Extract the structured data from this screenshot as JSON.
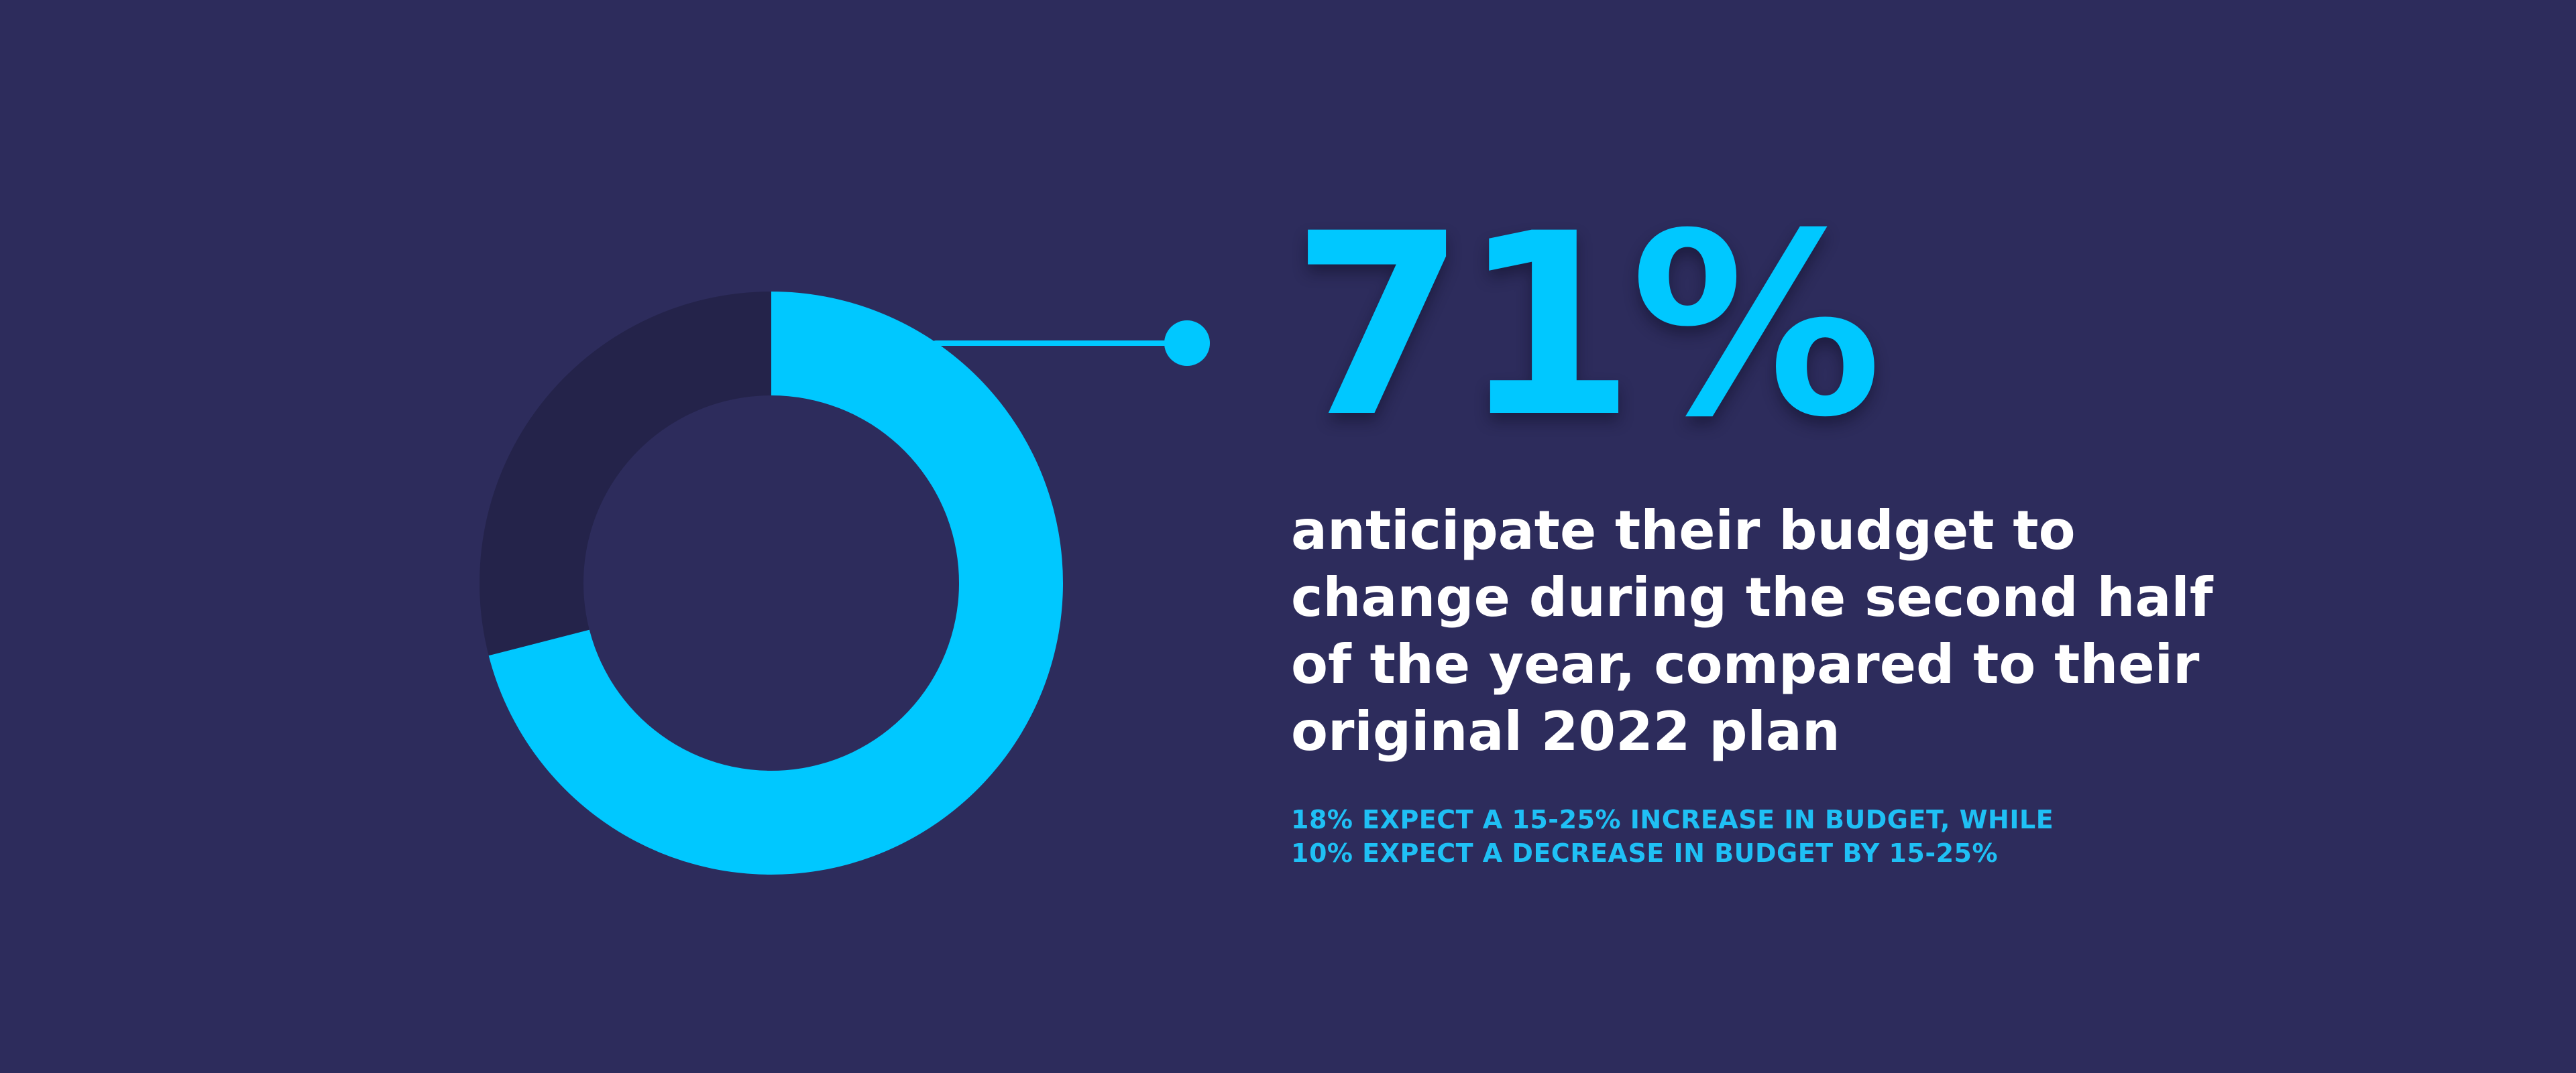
{
  "chart_data": {
    "type": "pie",
    "style": "donut",
    "slices": [
      {
        "label": "",
        "value": 71,
        "color": "#00c8ff"
      },
      {
        "label": "",
        "value": 29,
        "color": "#24234a"
      }
    ],
    "callout": {
      "value": "71%",
      "text_lines": [
        "anticipate their budget to",
        "change during the second half",
        "of the year, compared to their",
        "original 2022 plan"
      ]
    },
    "footnote_lines": [
      "18% EXPECT A 15-25% INCREASE IN BUDGET, WHILE",
      "10% EXPECT A DECREASE IN BUDGET BY 15-25%"
    ]
  },
  "colors": {
    "background": "#2d2c5c",
    "accent": "#00c8ff",
    "track": "#24234a",
    "text": "#ffffff",
    "footnote": "#1fc0f5"
  }
}
